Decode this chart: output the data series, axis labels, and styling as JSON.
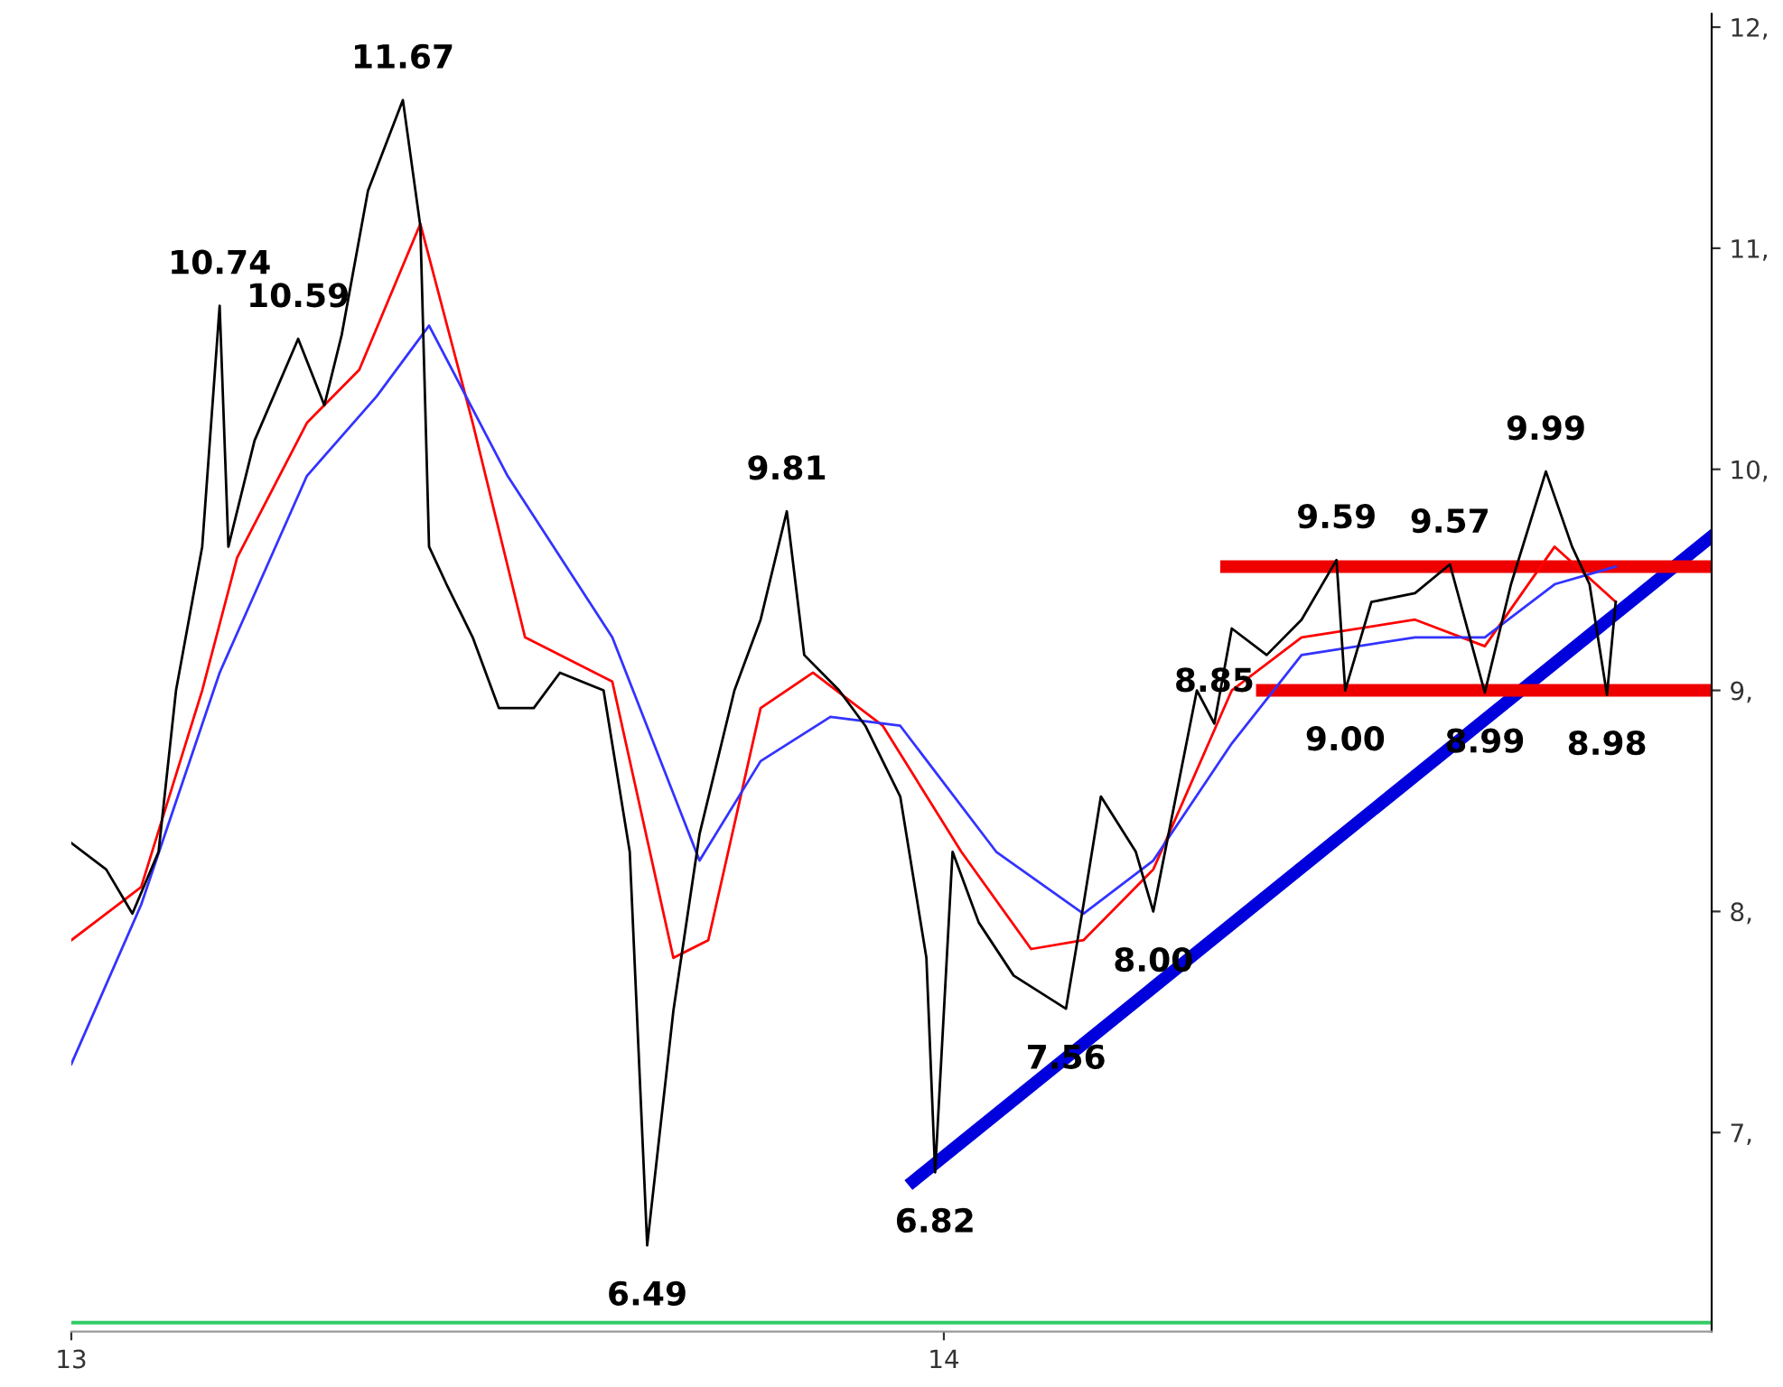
{
  "chart_data": {
    "type": "line",
    "xlim": [
      13.0,
      14.88
    ],
    "ylim": [
      6.1,
      12.06
    ],
    "xticks": [
      13,
      14
    ],
    "yticks": [
      {
        "value": 7,
        "label": "7,"
      },
      {
        "value": 8,
        "label": "8,"
      },
      {
        "value": 9,
        "label": "9,"
      },
      {
        "value": 10,
        "label": "10,"
      },
      {
        "value": 11,
        "label": "11,"
      },
      {
        "value": 12,
        "label": "12,"
      }
    ],
    "grid": false,
    "legend": false,
    "marker": "none",
    "line_style": "solid",
    "series": [
      {
        "color": "#000000",
        "x": [
          13.0,
          13.04,
          13.07,
          13.1,
          13.12,
          13.15,
          13.17,
          13.18,
          13.21,
          13.26,
          13.29,
          13.31,
          13.34,
          13.38,
          13.4,
          13.41,
          13.43,
          13.46,
          13.49,
          13.53,
          13.56,
          13.61,
          13.64,
          13.66,
          13.69,
          13.72,
          13.76,
          13.79,
          13.82,
          13.84,
          13.88,
          13.91,
          13.95,
          13.98,
          13.99,
          14.01,
          14.04,
          14.08,
          14.14,
          14.16,
          14.18,
          14.22,
          14.24,
          14.29,
          14.31,
          14.33,
          14.37,
          14.41,
          14.45,
          14.46,
          14.49,
          14.54,
          14.58,
          14.62,
          14.65,
          14.69,
          14.72,
          14.74,
          14.76,
          14.77
        ],
        "values": [
          8.31,
          8.19,
          7.99,
          8.27,
          9.0,
          9.65,
          10.74,
          9.65,
          10.13,
          10.59,
          10.29,
          10.61,
          11.26,
          11.67,
          11.1,
          9.65,
          9.48,
          9.24,
          8.92,
          8.92,
          9.08,
          9.0,
          8.27,
          6.49,
          7.55,
          8.35,
          9.0,
          9.32,
          9.81,
          9.16,
          9.0,
          8.84,
          8.52,
          7.79,
          6.82,
          8.27,
          7.95,
          7.71,
          7.56,
          8.03,
          8.52,
          8.27,
          8.0,
          9.0,
          8.85,
          9.28,
          9.16,
          9.32,
          9.59,
          9.0,
          9.4,
          9.44,
          9.57,
          8.99,
          9.48,
          9.99,
          9.65,
          9.48,
          8.98,
          9.4
        ]
      },
      {
        "color": "#ff0000",
        "x": [
          13.0,
          13.08,
          13.15,
          13.19,
          13.27,
          13.33,
          13.4,
          13.46,
          13.52,
          13.62,
          13.69,
          13.73,
          13.79,
          13.85,
          13.93,
          14.02,
          14.1,
          14.16,
          14.24,
          14.33,
          14.41,
          14.54,
          14.62,
          14.7,
          14.77
        ],
        "values": [
          7.87,
          8.11,
          9.0,
          9.6,
          10.21,
          10.45,
          11.11,
          10.21,
          9.24,
          9.04,
          7.79,
          7.87,
          8.92,
          9.08,
          8.84,
          8.27,
          7.83,
          7.87,
          8.19,
          9.0,
          9.24,
          9.32,
          9.2,
          9.65,
          9.4
        ]
      },
      {
        "color": "#3333ff",
        "x": [
          13.0,
          13.08,
          13.17,
          13.27,
          13.35,
          13.41,
          13.5,
          13.62,
          13.72,
          13.79,
          13.87,
          13.95,
          14.06,
          14.16,
          14.24,
          14.33,
          14.41,
          14.54,
          14.62,
          14.7,
          14.77
        ],
        "values": [
          7.31,
          8.03,
          9.08,
          9.97,
          10.33,
          10.65,
          9.97,
          9.24,
          8.23,
          8.68,
          8.88,
          8.84,
          8.27,
          7.99,
          8.23,
          8.76,
          9.16,
          9.24,
          9.24,
          9.48,
          9.56
        ]
      },
      {
        "color": "#0000dd",
        "x": [
          13.965,
          14.878
        ],
        "values": [
          6.78,
          9.69
        ]
      },
      {
        "color": "#ee0000",
        "x": [
          14.324,
          14.878
        ],
        "values": [
          9.56,
          9.56
        ]
      },
      {
        "color": "#ee0000",
        "x": [
          14.365,
          14.878
        ],
        "values": [
          9.0,
          9.0
        ]
      }
    ],
    "ref_lines": [
      {
        "axis": "y",
        "value": 6.14,
        "color": "#33cc66"
      }
    ],
    "annotations": [
      {
        "text": "10.74",
        "x": 13.17,
        "y": 10.74
      },
      {
        "text": "10.59",
        "x": 13.26,
        "y": 10.59
      },
      {
        "text": "11.67",
        "x": 13.38,
        "y": 11.67
      },
      {
        "text": "6.49",
        "x": 13.66,
        "y": 6.49
      },
      {
        "text": "9.81",
        "x": 13.82,
        "y": 9.81
      },
      {
        "text": "6.82",
        "x": 13.99,
        "y": 6.82
      },
      {
        "text": "7.56",
        "x": 14.14,
        "y": 7.56
      },
      {
        "text": "8.00",
        "x": 14.24,
        "y": 8.0
      },
      {
        "text": "8.85",
        "x": 14.31,
        "y": 8.85
      },
      {
        "text": "9.59",
        "x": 14.45,
        "y": 9.59
      },
      {
        "text": "9.00",
        "x": 14.46,
        "y": 9.0
      },
      {
        "text": "9.57",
        "x": 14.58,
        "y": 9.57
      },
      {
        "text": "8.99",
        "x": 14.62,
        "y": 8.99
      },
      {
        "text": "9.99",
        "x": 14.69,
        "y": 9.99
      },
      {
        "text": "8.98",
        "x": 14.76,
        "y": 8.98
      }
    ]
  }
}
